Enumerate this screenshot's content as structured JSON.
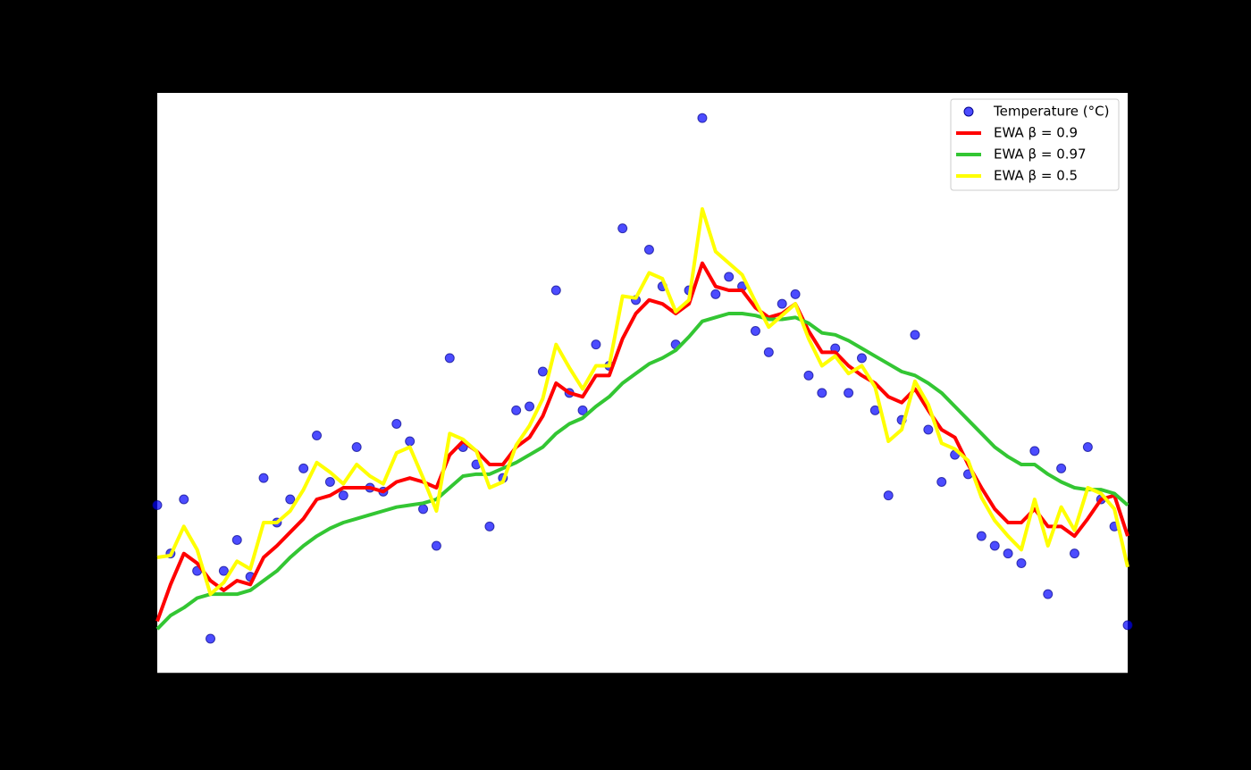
{
  "chart_data": {
    "type": "line",
    "x": [
      0,
      5,
      10,
      15,
      20,
      25,
      30,
      35,
      40,
      45,
      50,
      55,
      60,
      65,
      70,
      75,
      80,
      85,
      90,
      95,
      100,
      105,
      110,
      115,
      120,
      125,
      130,
      135,
      140,
      145,
      150,
      155,
      160,
      165,
      170,
      175,
      180,
      185,
      190,
      195,
      200,
      205,
      210,
      215,
      220,
      225,
      230,
      235,
      240,
      245,
      250,
      255,
      260,
      265,
      270,
      275,
      280,
      285,
      290,
      295,
      300,
      305,
      310,
      315,
      320,
      325,
      330,
      335,
      340,
      345,
      350,
      355,
      360,
      365
    ],
    "xlim": [
      0,
      365
    ],
    "ylim": [
      0,
      30
    ],
    "legend": "upper right",
    "series": [
      {
        "name": "Temperature (°C)",
        "type": "scatter",
        "color": "#0000ff",
        "values": [
          8.7,
          6.2,
          9.0,
          5.3,
          1.8,
          5.3,
          6.9,
          5.0,
          10.1,
          7.8,
          9.0,
          10.6,
          12.3,
          9.9,
          9.2,
          11.7,
          9.6,
          9.4,
          12.9,
          12.0,
          8.5,
          6.6,
          16.3,
          11.7,
          10.8,
          7.6,
          10.1,
          13.6,
          13.8,
          15.6,
          19.8,
          14.5,
          13.6,
          17.0,
          15.9,
          23.0,
          19.3,
          21.9,
          20.0,
          17.0,
          19.8,
          28.7,
          19.6,
          20.5,
          20.0,
          17.7,
          16.6,
          19.1,
          19.6,
          15.4,
          14.5,
          16.8,
          14.5,
          16.3,
          13.6,
          9.2,
          13.1,
          17.5,
          12.6,
          9.9,
          11.3,
          10.3,
          7.1,
          6.6,
          6.2,
          5.7,
          11.5,
          4.1,
          10.6,
          6.2,
          11.7,
          9.0,
          7.6,
          2.5
        ]
      },
      {
        "name": "EWA β = 0.9",
        "type": "line",
        "color": "#ff0000",
        "values": [
          2.7,
          4.6,
          6.2,
          5.7,
          4.8,
          4.3,
          4.8,
          4.6,
          6.0,
          6.6,
          7.3,
          8.0,
          9.0,
          9.2,
          9.6,
          9.6,
          9.6,
          9.4,
          9.9,
          10.1,
          9.9,
          9.6,
          11.3,
          12.0,
          11.5,
          10.8,
          10.8,
          11.7,
          12.2,
          13.3,
          15.0,
          14.5,
          14.3,
          15.4,
          15.4,
          17.3,
          18.6,
          19.3,
          19.1,
          18.6,
          19.1,
          21.2,
          20.0,
          19.8,
          19.8,
          18.9,
          18.4,
          18.6,
          19.1,
          17.7,
          16.6,
          16.6,
          15.9,
          15.4,
          15.0,
          14.3,
          14.0,
          14.7,
          13.6,
          12.6,
          12.2,
          10.8,
          9.6,
          8.5,
          7.8,
          7.8,
          8.5,
          7.6,
          7.6,
          7.1,
          8.0,
          9.0,
          9.2,
          7.1
        ]
      },
      {
        "name": "EWA β = 0.97",
        "type": "line",
        "color": "#33c633",
        "values": [
          2.3,
          3.0,
          3.4,
          3.9,
          4.1,
          4.1,
          4.1,
          4.3,
          4.8,
          5.3,
          6.0,
          6.6,
          7.1,
          7.5,
          7.8,
          8.0,
          8.2,
          8.4,
          8.6,
          8.7,
          8.8,
          9.0,
          9.6,
          10.2,
          10.3,
          10.3,
          10.6,
          10.9,
          11.3,
          11.7,
          12.4,
          12.9,
          13.2,
          13.8,
          14.3,
          15.0,
          15.5,
          16.0,
          16.3,
          16.7,
          17.4,
          18.2,
          18.4,
          18.6,
          18.6,
          18.5,
          18.3,
          18.3,
          18.4,
          18.1,
          17.6,
          17.5,
          17.2,
          16.8,
          16.4,
          16.0,
          15.6,
          15.4,
          15.0,
          14.5,
          13.8,
          13.1,
          12.4,
          11.7,
          11.2,
          10.8,
          10.8,
          10.3,
          9.9,
          9.6,
          9.5,
          9.5,
          9.3,
          8.7
        ]
      },
      {
        "name": "EWA β = 0.5",
        "type": "line",
        "color": "#ffff00",
        "values": [
          6.0,
          6.1,
          7.6,
          6.4,
          4.1,
          4.7,
          5.8,
          5.4,
          7.8,
          7.8,
          8.4,
          9.5,
          10.9,
          10.4,
          9.8,
          10.8,
          10.2,
          9.8,
          11.4,
          11.7,
          10.1,
          8.4,
          12.4,
          12.1,
          11.5,
          9.6,
          9.9,
          11.8,
          12.8,
          14.2,
          17.0,
          15.8,
          14.7,
          15.9,
          15.9,
          19.5,
          19.4,
          20.7,
          20.4,
          18.7,
          19.3,
          24.0,
          21.8,
          21.2,
          20.6,
          19.2,
          17.9,
          18.5,
          19.1,
          17.3,
          15.9,
          16.4,
          15.5,
          15.9,
          14.8,
          12.0,
          12.6,
          15.1,
          13.9,
          11.9,
          11.6,
          11.0,
          9.1,
          7.9,
          7.1,
          6.4,
          9.0,
          6.6,
          8.6,
          7.4,
          9.6,
          9.3,
          8.5,
          5.5
        ]
      }
    ]
  }
}
